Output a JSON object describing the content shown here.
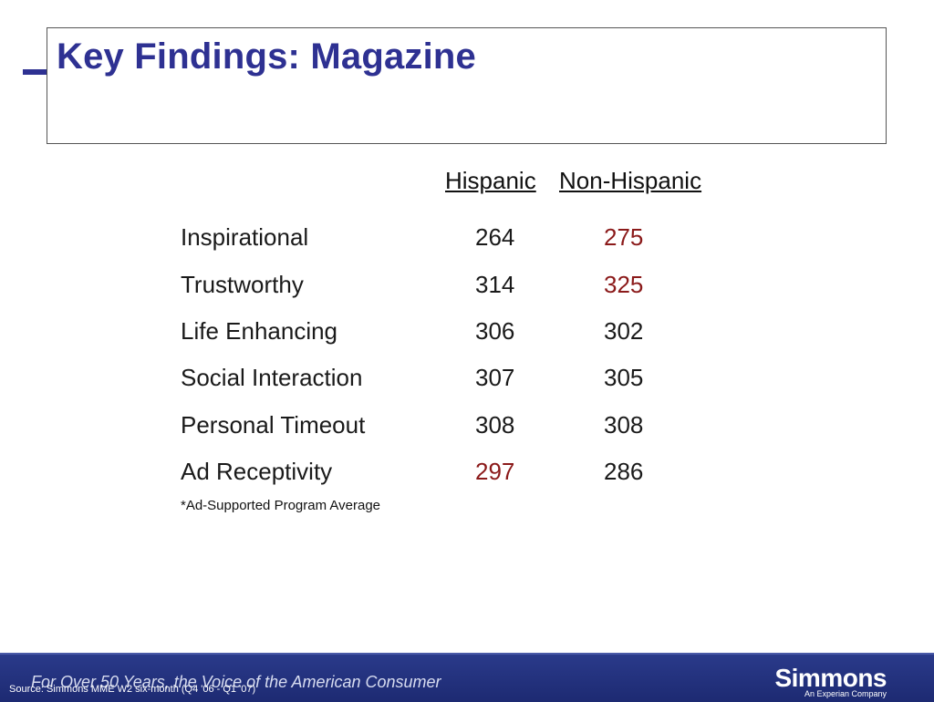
{
  "slide": {
    "title": "Key Findings: Magazine",
    "columns": [
      "Hispanic",
      "Non-Hispanic"
    ],
    "rows": [
      {
        "label": "Inspirational",
        "hispanic": "264",
        "non_hispanic": "275"
      },
      {
        "label": "Trustworthy",
        "hispanic": "314",
        "non_hispanic": "325"
      },
      {
        "label": "Life Enhancing",
        "hispanic": "306",
        "non_hispanic": "302"
      },
      {
        "label": "Social Interaction",
        "hispanic": "307",
        "non_hispanic": "305"
      },
      {
        "label": "Personal Timeout",
        "hispanic": "308",
        "non_hispanic": "308"
      },
      {
        "label": "Ad Receptivity",
        "hispanic": "297",
        "non_hispanic": "286"
      }
    ],
    "footnote": "*Ad-Supported Program Average"
  },
  "footer": {
    "tagline": "For Over 50 Years, the Voice of the American Consumer",
    "source": "Source: Simmons MME W2 six-month (Q4 '06 - Q1 '07)",
    "logo": "Simmons",
    "logo_sub": "An Experian Company"
  },
  "colors": {
    "title": "#2e3192",
    "highlight": "#8b1a1a",
    "footer_bg": "#1d2a72"
  }
}
